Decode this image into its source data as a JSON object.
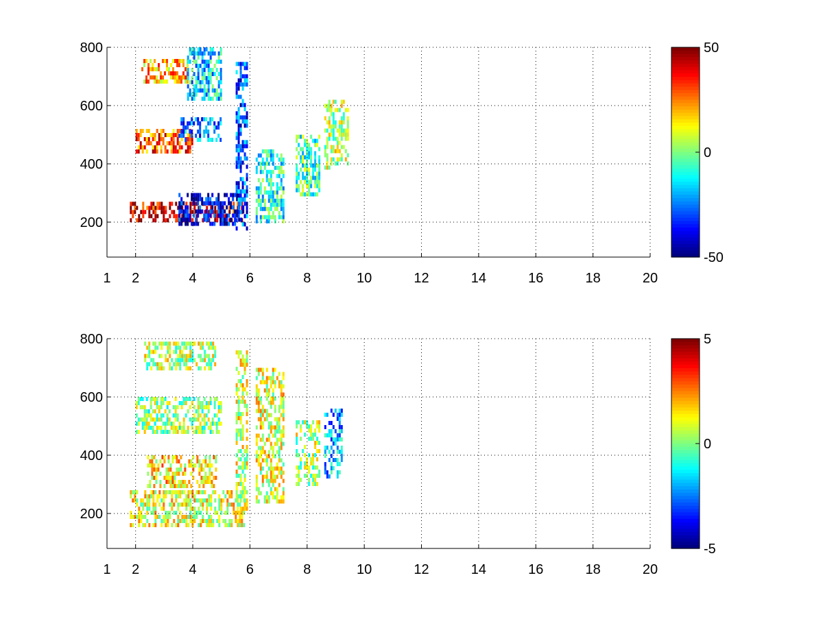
{
  "chart_data": [
    {
      "type": "heatmap",
      "title": "",
      "xlabel": "",
      "ylabel": "",
      "xlim": [
        1,
        20
      ],
      "ylim": [
        80,
        800
      ],
      "x_ticks": [
        1,
        2,
        4,
        6,
        8,
        10,
        12,
        14,
        16,
        18,
        20
      ],
      "y_ticks": [
        200,
        400,
        600,
        800
      ],
      "grid": true,
      "colormap": "jet",
      "colorbar": {
        "min": -50,
        "max": 50,
        "ticks": [
          50,
          0,
          -50
        ]
      },
      "regions": [
        {
          "x": [
            1.8,
            5.7
          ],
          "y": [
            200,
            270
          ],
          "value": 40
        },
        {
          "x": [
            3.5,
            5.8
          ],
          "y": [
            200,
            300
          ],
          "value": -40
        },
        {
          "x": [
            5.5,
            5.9
          ],
          "y": [
            180,
            750
          ],
          "value": -30
        },
        {
          "x": [
            2.0,
            4.0
          ],
          "y": [
            440,
            520
          ],
          "value": 30
        },
        {
          "x": [
            3.5,
            5.0
          ],
          "y": [
            480,
            560
          ],
          "value": -25
        },
        {
          "x": [
            2.2,
            3.8
          ],
          "y": [
            680,
            760
          ],
          "value": 20
        },
        {
          "x": [
            3.8,
            5.0
          ],
          "y": [
            620,
            800
          ],
          "value": -15
        },
        {
          "x": [
            6.2,
            7.2
          ],
          "y": [
            200,
            450
          ],
          "value": -10
        },
        {
          "x": [
            7.6,
            8.4
          ],
          "y": [
            300,
            500
          ],
          "value": -5
        },
        {
          "x": [
            8.6,
            9.4
          ],
          "y": [
            380,
            620
          ],
          "value": 5
        }
      ]
    },
    {
      "type": "heatmap",
      "title": "",
      "xlabel": "",
      "ylabel": "",
      "xlim": [
        1,
        20
      ],
      "ylim": [
        80,
        800
      ],
      "x_ticks": [
        1,
        2,
        4,
        6,
        8,
        10,
        12,
        14,
        16,
        18,
        20
      ],
      "y_ticks": [
        200,
        400,
        600,
        800
      ],
      "grid": true,
      "colormap": "jet",
      "colorbar": {
        "min": -5,
        "max": 5,
        "ticks": [
          5,
          0,
          -5
        ]
      },
      "regions": [
        {
          "x": [
            1.8,
            5.8
          ],
          "y": [
            160,
            280
          ],
          "value": 1
        },
        {
          "x": [
            2.4,
            4.8
          ],
          "y": [
            300,
            400
          ],
          "value": 1.5
        },
        {
          "x": [
            2.0,
            5.0
          ],
          "y": [
            480,
            600
          ],
          "value": 0.2
        },
        {
          "x": [
            2.3,
            4.8
          ],
          "y": [
            700,
            790
          ],
          "value": 0.5
        },
        {
          "x": [
            5.5,
            5.9
          ],
          "y": [
            220,
            760
          ],
          "value": 0.8
        },
        {
          "x": [
            6.2,
            7.2
          ],
          "y": [
            240,
            700
          ],
          "value": 1
        },
        {
          "x": [
            7.6,
            8.4
          ],
          "y": [
            300,
            520
          ],
          "value": 0.5
        },
        {
          "x": [
            8.6,
            9.2
          ],
          "y": [
            320,
            560
          ],
          "value": -2
        }
      ]
    }
  ]
}
